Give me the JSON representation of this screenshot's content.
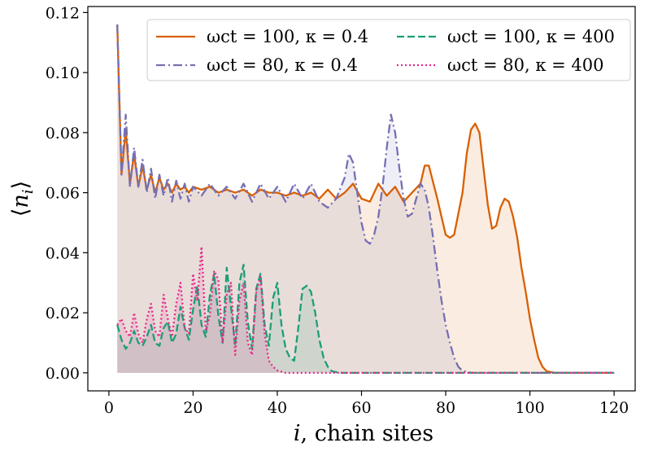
{
  "chart_data": {
    "type": "line",
    "xlabel": "i, chain sites",
    "ylabel": "⟨nᵢ⟩",
    "xlim": [
      -5,
      125
    ],
    "ylim": [
      -0.006,
      0.122
    ],
    "xticks": [
      "0",
      "20",
      "40",
      "60",
      "80",
      "100",
      "120"
    ],
    "yticks": [
      "0.00",
      "0.02",
      "0.04",
      "0.06",
      "0.08",
      "0.10",
      "0.12"
    ],
    "grid": false,
    "legend_position": "top-right",
    "legend_columns": 2,
    "series": [
      {
        "name": "ωct = 100, κ = 0.4",
        "color": "#d95f02",
        "dash": "solid",
        "fill_opacity": 0.12,
        "points": [
          [
            2,
            0.116
          ],
          [
            3,
            0.066
          ],
          [
            4,
            0.081
          ],
          [
            5,
            0.063
          ],
          [
            6,
            0.073
          ],
          [
            7,
            0.062
          ],
          [
            8,
            0.069
          ],
          [
            9,
            0.061
          ],
          [
            10,
            0.066
          ],
          [
            11,
            0.06
          ],
          [
            12,
            0.065
          ],
          [
            13,
            0.061
          ],
          [
            14,
            0.063
          ],
          [
            15,
            0.06
          ],
          [
            16,
            0.063
          ],
          [
            17,
            0.061
          ],
          [
            18,
            0.062
          ],
          [
            19,
            0.06
          ],
          [
            20,
            0.062
          ],
          [
            22,
            0.061
          ],
          [
            24,
            0.062
          ],
          [
            26,
            0.06
          ],
          [
            28,
            0.061
          ],
          [
            30,
            0.06
          ],
          [
            32,
            0.061
          ],
          [
            34,
            0.059
          ],
          [
            36,
            0.061
          ],
          [
            38,
            0.06
          ],
          [
            40,
            0.06
          ],
          [
            42,
            0.059
          ],
          [
            44,
            0.06
          ],
          [
            46,
            0.059
          ],
          [
            48,
            0.06
          ],
          [
            50,
            0.058
          ],
          [
            52,
            0.061
          ],
          [
            54,
            0.058
          ],
          [
            56,
            0.06
          ],
          [
            58,
            0.063
          ],
          [
            60,
            0.058
          ],
          [
            62,
            0.057
          ],
          [
            64,
            0.063
          ],
          [
            66,
            0.059
          ],
          [
            68,
            0.062
          ],
          [
            70,
            0.057
          ],
          [
            72,
            0.06
          ],
          [
            74,
            0.063
          ],
          [
            75,
            0.069
          ],
          [
            76,
            0.069
          ],
          [
            78,
            0.058
          ],
          [
            80,
            0.046
          ],
          [
            81,
            0.045
          ],
          [
            82,
            0.046
          ],
          [
            84,
            0.06
          ],
          [
            85,
            0.073
          ],
          [
            86,
            0.081
          ],
          [
            87,
            0.083
          ],
          [
            88,
            0.08
          ],
          [
            89,
            0.068
          ],
          [
            90,
            0.056
          ],
          [
            91,
            0.048
          ],
          [
            92,
            0.049
          ],
          [
            93,
            0.055
          ],
          [
            94,
            0.058
          ],
          [
            95,
            0.057
          ],
          [
            96,
            0.052
          ],
          [
            97,
            0.045
          ],
          [
            98,
            0.035
          ],
          [
            99,
            0.027
          ],
          [
            100,
            0.018
          ],
          [
            101,
            0.011
          ],
          [
            102,
            0.005
          ],
          [
            103,
            0.002
          ],
          [
            104,
            0.0005
          ],
          [
            106,
            0.0
          ],
          [
            120,
            0.0
          ]
        ]
      },
      {
        "name": "ωct = 80, κ = 0.4",
        "color": "#7570b3",
        "dash": "dashdot",
        "fill_opacity": 0.12,
        "points": [
          [
            2,
            0.116
          ],
          [
            3,
            0.066
          ],
          [
            4,
            0.086
          ],
          [
            5,
            0.062
          ],
          [
            6,
            0.075
          ],
          [
            7,
            0.062
          ],
          [
            8,
            0.071
          ],
          [
            9,
            0.06
          ],
          [
            10,
            0.068
          ],
          [
            11,
            0.058
          ],
          [
            12,
            0.066
          ],
          [
            13,
            0.059
          ],
          [
            14,
            0.065
          ],
          [
            15,
            0.057
          ],
          [
            16,
            0.064
          ],
          [
            17,
            0.058
          ],
          [
            18,
            0.063
          ],
          [
            19,
            0.057
          ],
          [
            20,
            0.062
          ],
          [
            22,
            0.059
          ],
          [
            24,
            0.063
          ],
          [
            26,
            0.059
          ],
          [
            28,
            0.062
          ],
          [
            30,
            0.058
          ],
          [
            32,
            0.063
          ],
          [
            34,
            0.057
          ],
          [
            36,
            0.063
          ],
          [
            38,
            0.058
          ],
          [
            40,
            0.062
          ],
          [
            42,
            0.057
          ],
          [
            44,
            0.063
          ],
          [
            46,
            0.058
          ],
          [
            48,
            0.063
          ],
          [
            50,
            0.057
          ],
          [
            52,
            0.055
          ],
          [
            54,
            0.058
          ],
          [
            56,
            0.065
          ],
          [
            57,
            0.073
          ],
          [
            58,
            0.07
          ],
          [
            59,
            0.06
          ],
          [
            60,
            0.05
          ],
          [
            61,
            0.044
          ],
          [
            62,
            0.043
          ],
          [
            63,
            0.046
          ],
          [
            64,
            0.052
          ],
          [
            65,
            0.062
          ],
          [
            66,
            0.075
          ],
          [
            67,
            0.086
          ],
          [
            68,
            0.08
          ],
          [
            69,
            0.068
          ],
          [
            70,
            0.058
          ],
          [
            71,
            0.052
          ],
          [
            72,
            0.053
          ],
          [
            73,
            0.058
          ],
          [
            74,
            0.063
          ],
          [
            75,
            0.061
          ],
          [
            76,
            0.055
          ],
          [
            77,
            0.045
          ],
          [
            78,
            0.034
          ],
          [
            79,
            0.024
          ],
          [
            80,
            0.016
          ],
          [
            81,
            0.01
          ],
          [
            82,
            0.005
          ],
          [
            83,
            0.002
          ],
          [
            84,
            0.0007
          ],
          [
            86,
            0.0
          ],
          [
            120,
            0.0
          ]
        ]
      },
      {
        "name": "ωct = 100, κ = 400",
        "color": "#1b9e77",
        "dash": "dashed",
        "fill_opacity": 0.12,
        "points": [
          [
            2,
            0.016
          ],
          [
            3,
            0.011
          ],
          [
            4,
            0.008
          ],
          [
            5,
            0.01
          ],
          [
            6,
            0.014
          ],
          [
            7,
            0.01
          ],
          [
            8,
            0.009
          ],
          [
            9,
            0.012
          ],
          [
            10,
            0.016
          ],
          [
            11,
            0.01
          ],
          [
            12,
            0.009
          ],
          [
            13,
            0.015
          ],
          [
            14,
            0.017
          ],
          [
            15,
            0.01
          ],
          [
            16,
            0.013
          ],
          [
            17,
            0.022
          ],
          [
            18,
            0.015
          ],
          [
            19,
            0.011
          ],
          [
            20,
            0.021
          ],
          [
            21,
            0.029
          ],
          [
            22,
            0.016
          ],
          [
            23,
            0.012
          ],
          [
            24,
            0.026
          ],
          [
            25,
            0.033
          ],
          [
            26,
            0.019
          ],
          [
            27,
            0.01
          ],
          [
            28,
            0.035
          ],
          [
            29,
            0.022
          ],
          [
            30,
            0.009
          ],
          [
            31,
            0.03
          ],
          [
            32,
            0.036
          ],
          [
            33,
            0.017
          ],
          [
            34,
            0.008
          ],
          [
            35,
            0.028
          ],
          [
            36,
            0.033
          ],
          [
            37,
            0.016
          ],
          [
            38,
            0.009
          ],
          [
            39,
            0.025
          ],
          [
            40,
            0.03
          ],
          [
            41,
            0.016
          ],
          [
            42,
            0.008
          ],
          [
            43,
            0.005
          ],
          [
            44,
            0.004
          ],
          [
            45,
            0.015
          ],
          [
            46,
            0.028
          ],
          [
            47,
            0.029
          ],
          [
            48,
            0.027
          ],
          [
            49,
            0.02
          ],
          [
            50,
            0.011
          ],
          [
            51,
            0.005
          ],
          [
            52,
            0.002
          ],
          [
            53,
            0.0005
          ],
          [
            55,
            0.0
          ],
          [
            120,
            0.0
          ]
        ]
      },
      {
        "name": "ωct = 80, κ = 400",
        "color": "#e7298a",
        "dash": "dotted",
        "fill_opacity": 0.12,
        "points": [
          [
            2,
            0.016
          ],
          [
            3,
            0.018
          ],
          [
            4,
            0.014
          ],
          [
            5,
            0.012
          ],
          [
            6,
            0.02
          ],
          [
            7,
            0.013
          ],
          [
            8,
            0.01
          ],
          [
            9,
            0.018
          ],
          [
            10,
            0.023
          ],
          [
            11,
            0.014
          ],
          [
            12,
            0.012
          ],
          [
            13,
            0.026
          ],
          [
            14,
            0.018
          ],
          [
            15,
            0.012
          ],
          [
            16,
            0.023
          ],
          [
            17,
            0.03
          ],
          [
            18,
            0.015
          ],
          [
            19,
            0.013
          ],
          [
            20,
            0.033
          ],
          [
            21,
            0.024
          ],
          [
            22,
            0.042
          ],
          [
            23,
            0.014
          ],
          [
            24,
            0.019
          ],
          [
            25,
            0.034
          ],
          [
            26,
            0.031
          ],
          [
            27,
            0.01
          ],
          [
            28,
            0.026
          ],
          [
            29,
            0.03
          ],
          [
            30,
            0.006
          ],
          [
            31,
            0.024
          ],
          [
            32,
            0.03
          ],
          [
            33,
            0.01
          ],
          [
            34,
            0.006
          ],
          [
            35,
            0.027
          ],
          [
            36,
            0.032
          ],
          [
            37,
            0.013
          ],
          [
            38,
            0.004
          ],
          [
            39,
            0.002
          ],
          [
            40,
            0.0008
          ],
          [
            42,
            0.0
          ],
          [
            120,
            0.0
          ]
        ]
      }
    ]
  }
}
